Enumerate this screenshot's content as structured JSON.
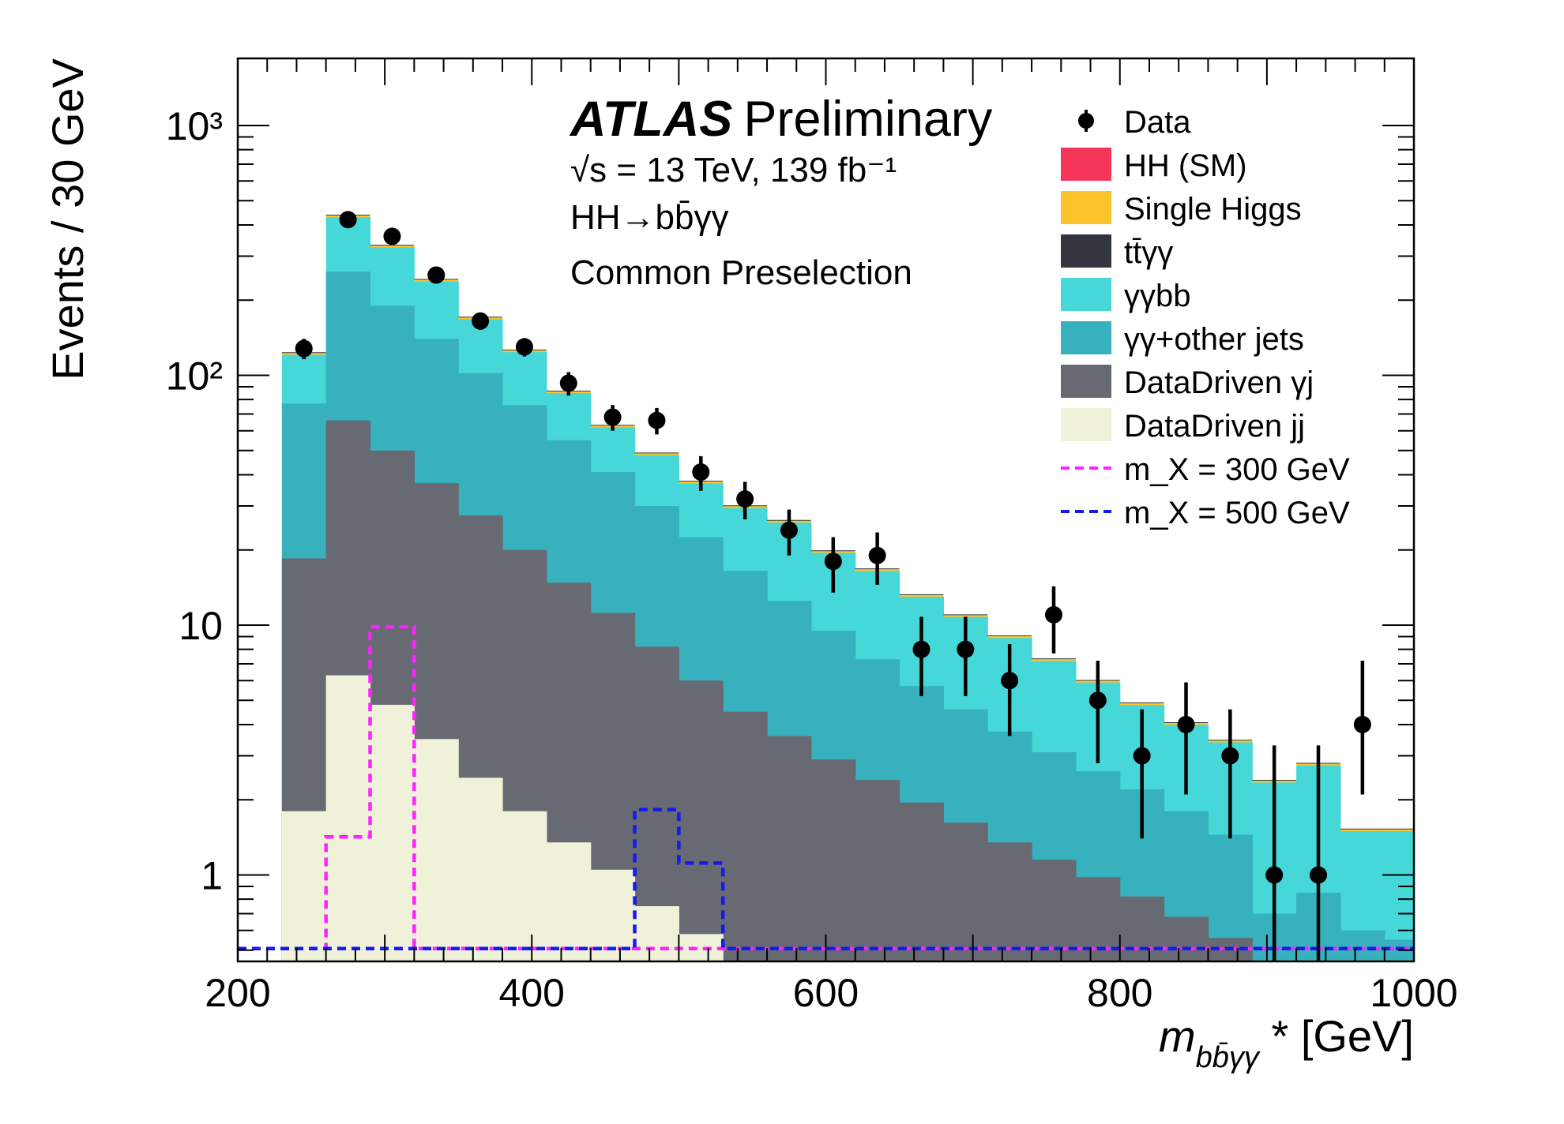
{
  "header": {
    "experiment": "ATLAS",
    "status": "Preliminary",
    "energy_label": "√s = 13 TeV, 139 fb⁻¹",
    "process_label": "HH→bb̄γγ",
    "selection_label": "Common Preselection"
  },
  "chart_data": {
    "type": "bar",
    "subtype": "stacked-histogram-log-y",
    "xlabel": "m_{bb̄γγ}* [GeV]",
    "ylabel": "Events / 30 GeV",
    "xlim": [
      200,
      1000
    ],
    "ylim": [
      0.5,
      2000
    ],
    "yscale": "log",
    "grid": false,
    "legend_position": "top-right",
    "x_ticks": [
      200,
      400,
      600,
      800,
      1000
    ],
    "x_tick_labels": [
      "200",
      "400",
      "600",
      "800",
      "1000"
    ],
    "y_ticks": [
      1,
      10,
      100,
      1000
    ],
    "y_tick_labels": [
      "1",
      "10",
      "10²",
      "10³"
    ],
    "bin_edges": [
      230,
      260,
      290,
      320,
      350,
      380,
      410,
      440,
      470,
      500,
      530,
      560,
      590,
      620,
      650,
      680,
      710,
      740,
      770,
      800,
      830,
      860,
      890,
      920,
      950,
      980,
      1000
    ],
    "legend": [
      {
        "key": "data",
        "label": "Data",
        "style": "marker",
        "color": "#000000"
      },
      {
        "key": "hh_sm",
        "label": "HH (SM)",
        "style": "fill",
        "color": "#f5355a"
      },
      {
        "key": "single_higgs",
        "label": "Single Higgs",
        "style": "fill",
        "color": "#fcc42c"
      },
      {
        "key": "ttgg",
        "label": "tt̄γγ",
        "style": "fill",
        "color": "#33363f"
      },
      {
        "key": "ggbb",
        "label": "γγbb",
        "style": "fill",
        "color": "#46d8d8"
      },
      {
        "key": "gg_other",
        "label": "γγ+other jets",
        "style": "fill",
        "color": "#37b1be"
      },
      {
        "key": "dd_gj",
        "label": "DataDriven γj",
        "style": "fill",
        "color": "#686a73"
      },
      {
        "key": "dd_jj",
        "label": "DataDriven jj",
        "style": "fill",
        "color": "#eff2d9"
      },
      {
        "key": "mx300",
        "label": "m_X = 300 GeV",
        "style": "dash",
        "color": "#ff21ff"
      },
      {
        "key": "mx500",
        "label": "m_X = 500 GeV",
        "style": "dash",
        "color": "#1818ef"
      }
    ],
    "stack_cumulative": {
      "dd_jj": [
        1.8,
        6.3,
        4.8,
        3.5,
        2.45,
        1.8,
        1.35,
        1.05,
        0.75,
        0.58,
        0.4,
        0.4,
        0.4,
        0.4,
        0.4,
        0.4,
        0.4,
        0.4,
        0.4,
        0.4,
        0.4,
        0.4,
        0.4,
        0.4,
        0.4,
        0.4
      ],
      "dd_gj": [
        18.5,
        66,
        50,
        37,
        27.5,
        20,
        14.8,
        11.2,
        8.2,
        6.0,
        4.5,
        3.6,
        2.9,
        2.4,
        1.95,
        1.62,
        1.35,
        1.15,
        0.98,
        0.82,
        0.68,
        0.56,
        0.45,
        0.45,
        0.45,
        0.45
      ],
      "gg_other": [
        77,
        260,
        190,
        140,
        102,
        76,
        55,
        41,
        30,
        22.5,
        16.5,
        12.5,
        9.5,
        7.3,
        5.7,
        4.6,
        3.75,
        3.1,
        2.6,
        2.2,
        1.8,
        1.45,
        0.7,
        0.85,
        0.6,
        0.55
      ],
      "total": [
        121,
        430,
        326,
        238,
        168,
        124,
        85,
        62,
        48,
        37,
        29.5,
        25.8,
        19.5,
        16.5,
        13,
        10.8,
        8.9,
        7.2,
        5.9,
        4.8,
        4.0,
        3.4,
        2.35,
        2.75,
        1.5,
        1.5
      ]
    },
    "data": {
      "x": [
        245,
        275,
        305,
        335,
        365,
        395,
        425,
        455,
        485,
        515,
        545,
        575,
        605,
        635,
        665,
        695,
        725,
        755,
        785,
        815,
        845,
        875,
        905,
        935,
        965
      ],
      "y": [
        128,
        420,
        360,
        252,
        165,
        130,
        93,
        68,
        66,
        41,
        32,
        24,
        18,
        19,
        8,
        8,
        6,
        11,
        5,
        3,
        4,
        3,
        1,
        1,
        4
      ],
      "err_lo": [
        12,
        20,
        19,
        16,
        13,
        11,
        10,
        8,
        8,
        6.5,
        5.5,
        5,
        4.5,
        4.5,
        2.8,
        2.8,
        2.4,
        3.3,
        2.2,
        1.6,
        1.9,
        1.6,
        0.9,
        0.9,
        1.9
      ],
      "err_hi": [
        12,
        20,
        19,
        16,
        13,
        11,
        10,
        8,
        8,
        6.5,
        5.5,
        5,
        4.5,
        4.5,
        2.8,
        2.8,
        2.4,
        3.3,
        2.2,
        1.6,
        1.9,
        1.6,
        2.3,
        2.3,
        3.2
      ]
    },
    "signals": {
      "mx300": {
        "edges": [
          200,
          260,
          290,
          320,
          1000
        ],
        "values": [
          0.5,
          1.4,
          9.7,
          0.5
        ]
      },
      "mx500": {
        "edges": [
          200,
          470,
          500,
          530,
          1000
        ],
        "values": [
          0.5,
          1.8,
          1.1,
          0.5
        ]
      }
    }
  }
}
